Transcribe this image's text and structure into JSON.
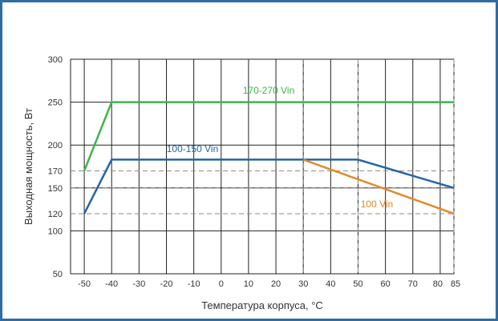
{
  "chart_data": {
    "type": "line",
    "xlabel": "Температура корпуса, °C",
    "ylabel": "Выходная мощность, Вт",
    "xlim": [
      -55,
      85
    ],
    "ylim": [
      50,
      300
    ],
    "x_ticks": [
      -50,
      -40,
      -30,
      -20,
      -10,
      0,
      10,
      20,
      30,
      40,
      50,
      60,
      70,
      80,
      85
    ],
    "x_tick_labels": [
      "-50",
      "-40",
      "-30",
      "-20",
      "-10",
      "0",
      "10",
      "20",
      "30",
      "40",
      "50",
      "60",
      "70",
      "80",
      "85"
    ],
    "y_ticks": [
      50,
      100,
      120,
      150,
      170,
      200,
      250,
      300
    ],
    "y_tick_labels": [
      "50",
      "100",
      "120",
      "150",
      "170",
      "200",
      "250",
      "300"
    ],
    "grid": true,
    "series": [
      {
        "name": "170-270 Vin",
        "color": "#3db54a",
        "x": [
          -50,
          -40,
          85
        ],
        "y": [
          170,
          250,
          250
        ]
      },
      {
        "name": "100-150 Vin",
        "color": "#2563a6",
        "x": [
          -50,
          -40,
          30,
          50,
          85
        ],
        "y": [
          120,
          183,
          183,
          183,
          150
        ]
      },
      {
        "name": "100 Vin",
        "color": "#e08a2c",
        "x": [
          30,
          85
        ],
        "y": [
          183,
          120
        ]
      }
    ],
    "reference_lines": {
      "color": "#888888",
      "dash": "dashed",
      "horizontal": [
        170,
        150,
        120
      ],
      "vertical": [
        30,
        50,
        85
      ]
    }
  }
}
